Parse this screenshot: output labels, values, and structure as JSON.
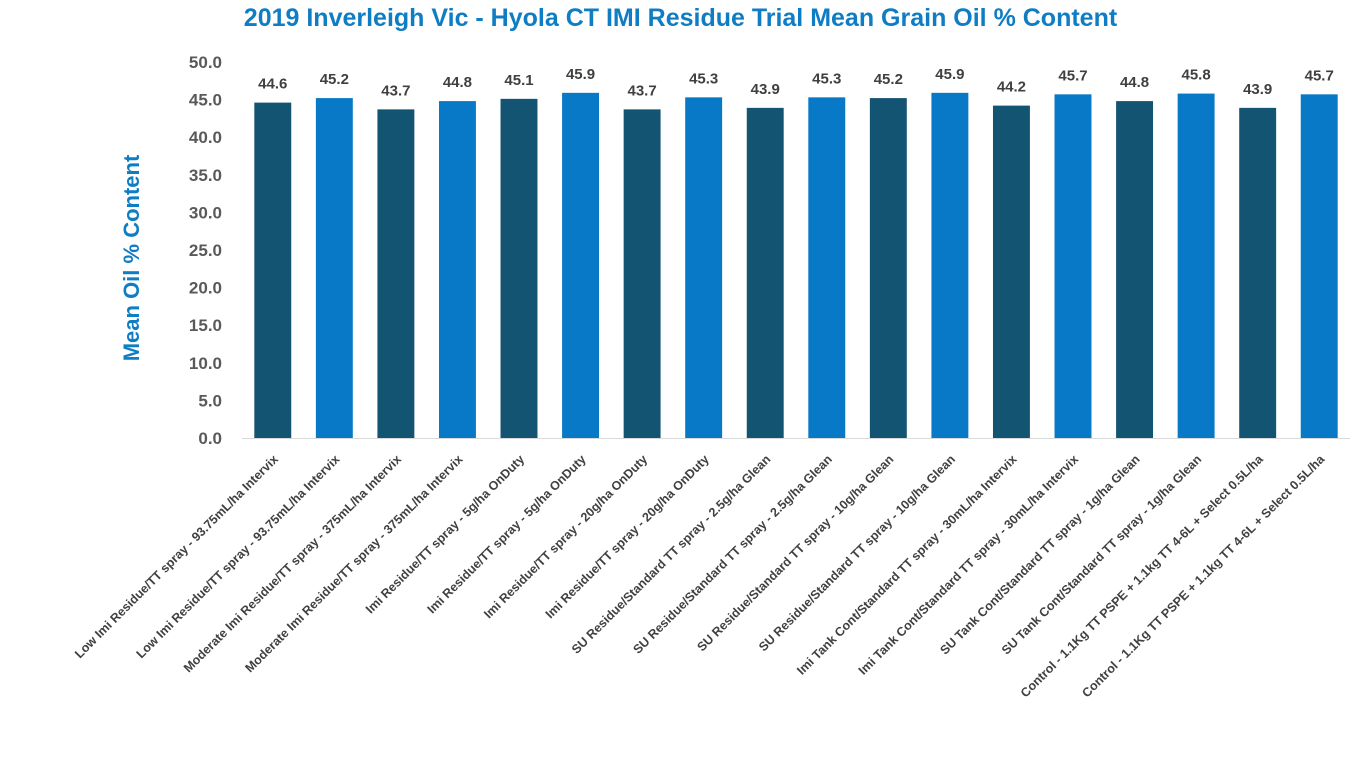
{
  "chart_data": {
    "type": "bar",
    "title": "2019 Inverleigh Vic - Hyola CT IMI Residue Trial Mean Grain Oil % Content",
    "xlabel": "",
    "ylabel": "Mean Oil % Content",
    "ylim": [
      0,
      50
    ],
    "yticks": [
      "0.0",
      "5.0",
      "10.0",
      "15.0",
      "20.0",
      "25.0",
      "30.0",
      "35.0",
      "40.0",
      "45.0",
      "50.0"
    ],
    "grid": false,
    "legend": "none",
    "categories": [
      "Low Imi Residue/TT spray - 93.75mL/ha Intervix",
      "Low Imi Residue/TT spray - 93.75mL/ha Intervix",
      "Moderate Imi Residue/TT spray - 375mL/ha Intervix",
      "Moderate Imi Residue/TT spray - 375mL/ha Intervix",
      "Imi Residue/TT spray - 5g/ha OnDuty",
      "Imi Residue/TT spray - 5g/ha OnDuty",
      "Imi Residue/TT spray - 20g/ha OnDuty",
      "Imi Residue/TT spray - 20g/ha OnDuty",
      "SU Residue/Standard TT spray - 2.5g/ha Glean",
      "SU Residue/Standard TT spray - 2.5g/ha Glean",
      "SU Residue/Standard TT spray - 10g/ha Glean",
      "SU Residue/Standard TT spray - 10g/ha Glean",
      "Imi Tank Cont/Standard TT spray - 30mL/ha Intervix",
      "Imi Tank Cont/Standard TT spray - 30mL/ha Intervix",
      "SU Tank Cont/Standard TT spray - 1g/ha Glean",
      "SU Tank Cont/Standard TT spray - 1g/ha Glean",
      "Control - 1.1Kg TT PSPE + 1.1kg TT 4-6L + Select 0.5L/ha",
      "Control - 1.1Kg TT PSPE + 1.1kg TT 4-6L + Select 0.5L/ha"
    ],
    "values": [
      44.6,
      45.2,
      43.7,
      44.8,
      45.1,
      45.9,
      43.7,
      45.3,
      43.9,
      45.3,
      45.2,
      45.9,
      44.2,
      45.7,
      44.8,
      45.8,
      43.9,
      45.7
    ],
    "data_labels": [
      "44.6",
      "45.2",
      "43.7",
      "44.8",
      "45.1",
      "45.9",
      "43.7",
      "45.3",
      "43.9",
      "45.3",
      "45.2",
      "45.9",
      "44.2",
      "45.7",
      "44.8",
      "45.8",
      "43.9",
      "45.7"
    ],
    "colors": {
      "dark": "#145473",
      "light": "#0779c6",
      "title": "#0f7dc3",
      "axis_text": "#595959",
      "label_text": "#404040",
      "axis_line": "#d9d9d9"
    }
  }
}
